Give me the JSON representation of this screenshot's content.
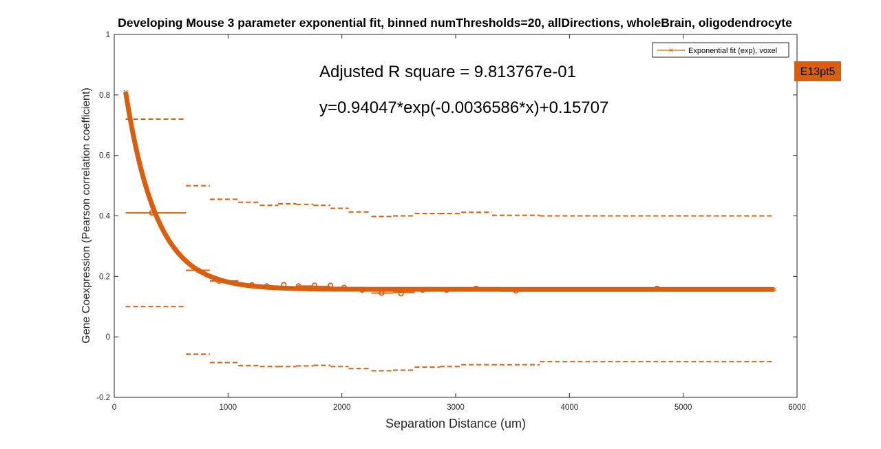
{
  "chart_data": {
    "type": "line",
    "title": "Developing Mouse 3 parameter exponential fit, binned numThresholds=20, allDirections, wholeBrain, oligodendrocyte",
    "xlabel": "Separation Distance (um)",
    "ylabel": "Gene Coexpression (Pearson correlation coefficient)",
    "xlim": [
      0,
      6000
    ],
    "ylim": [
      -0.2,
      1
    ],
    "xticks": [
      0,
      1000,
      2000,
      3000,
      4000,
      5000,
      6000
    ],
    "yticks": [
      -0.2,
      0,
      0.2,
      0.4,
      0.6,
      0.8,
      1
    ],
    "grid": false,
    "legend": {
      "position": "top-right",
      "entries": [
        "Exponential fit (exp), voxel"
      ]
    },
    "tag": "E13pt5",
    "annotations": {
      "rsquare": "Adjusted R square = 9.813767e-01",
      "equation": "y=0.94047*exp(-0.0036586*x)+0.15707"
    },
    "color": "#d95f0e",
    "fit": {
      "a": 0.94047,
      "b": -0.0036586,
      "c": 0.15707,
      "x_start": 100,
      "x_end": 5800
    },
    "bins": [
      {
        "x0": 100,
        "x1": 630,
        "mean": 0.41,
        "upper": 0.72,
        "lower": 0.1
      },
      {
        "x0": 630,
        "x1": 840,
        "mean": 0.22,
        "upper": 0.5,
        "lower": -0.057
      },
      {
        "x0": 840,
        "x1": 1090,
        "mean": 0.185,
        "upper": 0.455,
        "lower": -0.085
      },
      {
        "x0": 1090,
        "x1": 1280,
        "mean": 0.172,
        "upper": 0.445,
        "lower": -0.095
      },
      {
        "x0": 1280,
        "x1": 1440,
        "mean": 0.168,
        "upper": 0.435,
        "lower": -0.098
      },
      {
        "x0": 1440,
        "x1": 1600,
        "mean": 0.165,
        "upper": 0.44,
        "lower": -0.098
      },
      {
        "x0": 1600,
        "x1": 1750,
        "mean": 0.168,
        "upper": 0.438,
        "lower": -0.096
      },
      {
        "x0": 1750,
        "x1": 1900,
        "mean": 0.167,
        "upper": 0.435,
        "lower": -0.094
      },
      {
        "x0": 1900,
        "x1": 2060,
        "mean": 0.163,
        "upper": 0.425,
        "lower": -0.098
      },
      {
        "x0": 2060,
        "x1": 2260,
        "mean": 0.155,
        "upper": 0.413,
        "lower": -0.105
      },
      {
        "x0": 2260,
        "x1": 2450,
        "mean": 0.145,
        "upper": 0.398,
        "lower": -0.112
      },
      {
        "x0": 2450,
        "x1": 2640,
        "mean": 0.147,
        "upper": 0.4,
        "lower": -0.11
      },
      {
        "x0": 2640,
        "x1": 2860,
        "mean": 0.155,
        "upper": 0.408,
        "lower": -0.1
      },
      {
        "x0": 2860,
        "x1": 3050,
        "mean": 0.158,
        "upper": 0.408,
        "lower": -0.098
      },
      {
        "x0": 3050,
        "x1": 3320,
        "mean": 0.16,
        "upper": 0.412,
        "lower": -0.092
      },
      {
        "x0": 3320,
        "x1": 3740,
        "mean": 0.155,
        "upper": 0.402,
        "lower": -0.092
      },
      {
        "x0": 3740,
        "x1": 5800,
        "mean": 0.158,
        "upper": 0.4,
        "lower": -0.082
      }
    ],
    "points": [
      {
        "x": 330,
        "y": 0.41
      },
      {
        "x": 740,
        "y": 0.22
      },
      {
        "x": 920,
        "y": 0.185
      },
      {
        "x": 1210,
        "y": 0.172
      },
      {
        "x": 1340,
        "y": 0.168
      },
      {
        "x": 1490,
        "y": 0.172
      },
      {
        "x": 1620,
        "y": 0.168
      },
      {
        "x": 1760,
        "y": 0.17
      },
      {
        "x": 1900,
        "y": 0.17
      },
      {
        "x": 2020,
        "y": 0.163
      },
      {
        "x": 2180,
        "y": 0.155
      },
      {
        "x": 2350,
        "y": 0.145
      },
      {
        "x": 2520,
        "y": 0.143
      },
      {
        "x": 2710,
        "y": 0.155
      },
      {
        "x": 2920,
        "y": 0.155
      },
      {
        "x": 3180,
        "y": 0.16
      },
      {
        "x": 3530,
        "y": 0.152
      },
      {
        "x": 4770,
        "y": 0.16
      }
    ]
  }
}
